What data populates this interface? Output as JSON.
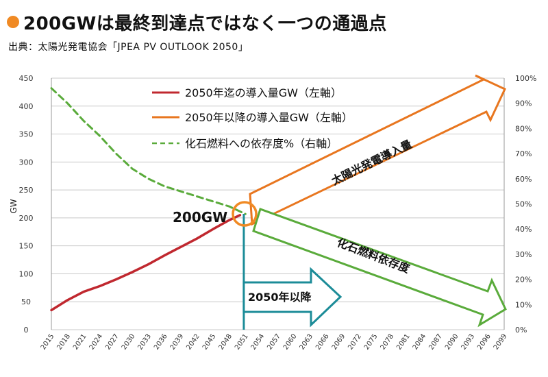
{
  "title": "200GWは最終到達点ではなく一つの通過点",
  "source_prefix": "出典：太陽光発電協会",
  "source_doc": "「JPEA PV OUTLOOK 2050」",
  "colors": {
    "accent_orange": "#f08a24",
    "installed_red": "#c0282f",
    "post2050_orange": "#e8761f",
    "fossil_green": "#5aab3b",
    "teal": "#1c8c98",
    "grid": "#c8c8c8",
    "axis_text": "#333333"
  },
  "annotations": {
    "label_200gw": "200GW",
    "arrow_after_2050": "2050年以降",
    "arrow_solar": "太陽光発電導入量",
    "arrow_fossil": "化石燃料依存度"
  },
  "chart_data": {
    "type": "line",
    "xlabel": "",
    "ylabel": "GW",
    "y2label": "",
    "ylim": [
      0,
      450
    ],
    "y2lim": [
      0,
      100
    ],
    "y_ticks": [
      0,
      50,
      100,
      150,
      200,
      250,
      300,
      350,
      400,
      450
    ],
    "y2_ticks": [
      "0%",
      "10%",
      "20%",
      "30%",
      "40%",
      "50%",
      "60%",
      "70%",
      "80%",
      "90%",
      "100%"
    ],
    "x_ticks": [
      "2015",
      "2018",
      "2021",
      "2024",
      "2027",
      "2030",
      "2033",
      "2036",
      "2039",
      "2042",
      "2045",
      "2048",
      "2051",
      "2054",
      "2057",
      "2060",
      "2063",
      "2066",
      "2069",
      "2072",
      "2075",
      "2078",
      "2081",
      "2084",
      "2087",
      "2090",
      "2093",
      "2096",
      "2099"
    ],
    "grid": true,
    "legend": "top-center",
    "series": [
      {
        "name": "2050年迄の導入量GW（左軸）",
        "axis": "left",
        "style": "solid",
        "color": "#c0282f",
        "x": [
          2015,
          2018,
          2021,
          2024,
          2027,
          2030,
          2033,
          2036,
          2039,
          2042,
          2045,
          2048,
          2050
        ],
        "values": [
          35,
          53,
          68,
          78,
          90,
          103,
          117,
          133,
          148,
          163,
          180,
          196,
          205
        ]
      },
      {
        "name": "2050年以降の導入量GW（左軸）",
        "axis": "left",
        "style": "solid",
        "color": "#e8761f",
        "x": [],
        "values": []
      },
      {
        "name": "化石燃料への依存度%（右軸）",
        "axis": "right",
        "style": "dashed",
        "color": "#5aab3b",
        "x": [
          2015,
          2018,
          2021,
          2024,
          2027,
          2030,
          2033,
          2036,
          2039,
          2042,
          2045,
          2048,
          2051
        ],
        "values": [
          96,
          90,
          83,
          77,
          70,
          64,
          60,
          57,
          55,
          53,
          51,
          49,
          46
        ]
      }
    ]
  }
}
